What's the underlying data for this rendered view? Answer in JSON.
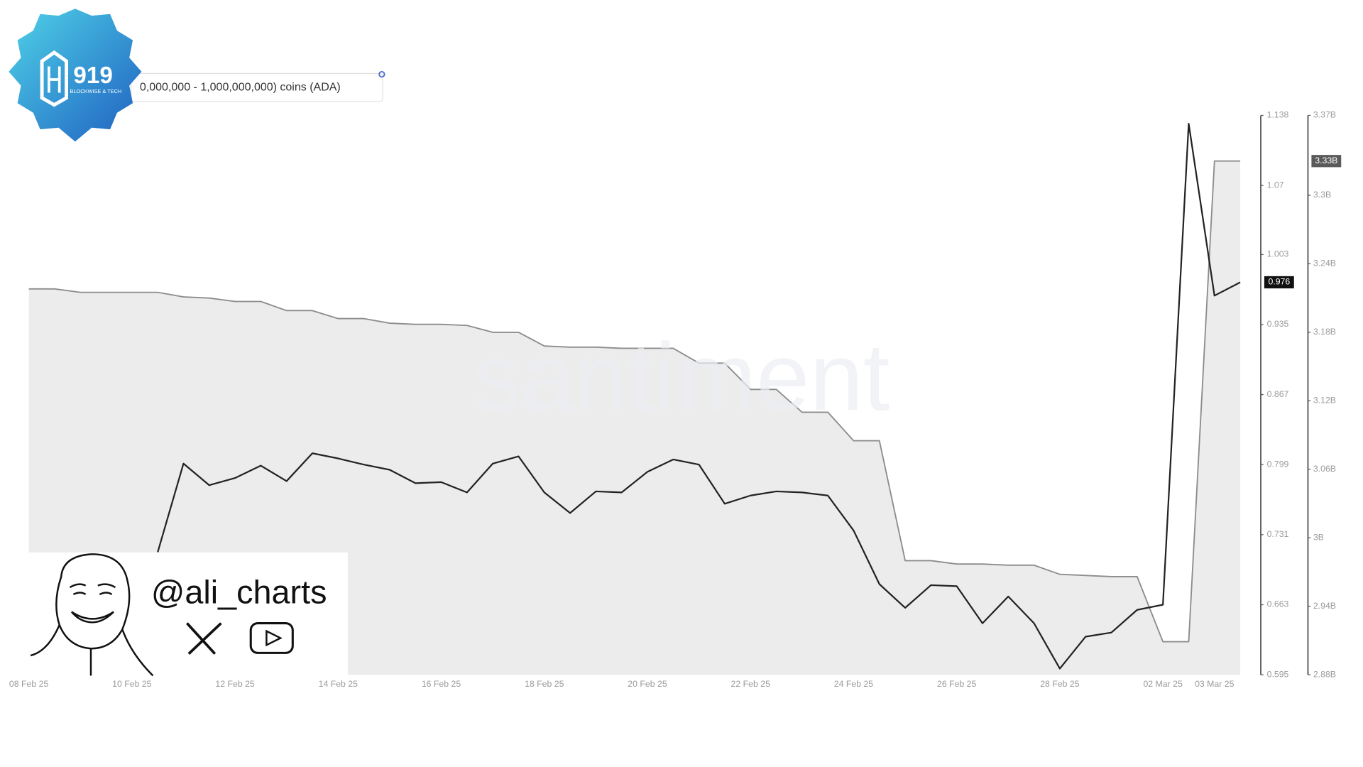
{
  "chart_data": {
    "type": "line",
    "watermark": "santiment",
    "logo": {
      "number": "919",
      "tagline": "BLOCKWISE & TECH"
    },
    "handle": "@ali_charts",
    "categories": [
      "08 Feb 25",
      null,
      null,
      null,
      "10 Feb 25",
      null,
      null,
      null,
      "12 Feb 25",
      null,
      null,
      null,
      "14 Feb 25",
      null,
      null,
      null,
      "16 Feb 25",
      null,
      null,
      null,
      "18 Feb 25",
      null,
      null,
      null,
      "20 Feb 25",
      null,
      null,
      null,
      "22 Feb 25",
      null,
      null,
      null,
      "24 Feb 25",
      null,
      null,
      null,
      "26 Feb 25",
      null,
      null,
      null,
      "28 Feb 25",
      null,
      null,
      null,
      "02 Mar 25",
      null,
      "03 Mar 25",
      null
    ],
    "series": [
      {
        "name": "0,000,000 - 1,000,000,000) coins (ADA)",
        "axis": "y2",
        "style": "area",
        "color": "#8c8c8c",
        "fill": "#ececec",
        "values": [
          3218000000,
          3218000000,
          3215000000,
          3215000000,
          3215000000,
          3215000000,
          3211000000,
          3210000000,
          3207000000,
          3207000000,
          3199000000,
          3199000000,
          3192000000,
          3192000000,
          3188000000,
          3187000000,
          3187000000,
          3186000000,
          3180000000,
          3180000000,
          3168000000,
          3167000000,
          3167000000,
          3166000000,
          3166000000,
          3166000000,
          3153000000,
          3153000000,
          3130000000,
          3130000000,
          3110000000,
          3110000000,
          3085000000,
          3085000000,
          2980000000,
          2980000000,
          2977000000,
          2977000000,
          2976000000,
          2976000000,
          2968000000,
          2967000000,
          2966000000,
          2966000000,
          2909000000,
          2909000000,
          3330000000,
          3330000000
        ],
        "value_labels": [
          null,
          null,
          null,
          null,
          null,
          null,
          null,
          null,
          null,
          null,
          null,
          null,
          null,
          null,
          null,
          null,
          null,
          null,
          null,
          null,
          null,
          null,
          null,
          null,
          null,
          null,
          null,
          null,
          null,
          null,
          null,
          null,
          null,
          null,
          null,
          null,
          null,
          null,
          null,
          null,
          null,
          null,
          null,
          null,
          null,
          null,
          null,
          "3.33B"
        ]
      },
      {
        "style": "line",
        "color": "#222222",
        "values": [
          null,
          null,
          null,
          null,
          null,
          0.714,
          0.8,
          0.779,
          0.786,
          0.798,
          0.783,
          0.81,
          0.805,
          0.799,
          0.794,
          0.781,
          0.782,
          0.772,
          0.8,
          0.807,
          0.772,
          0.752,
          0.773,
          0.772,
          0.792,
          0.804,
          0.799,
          0.761,
          0.769,
          0.773,
          0.772,
          0.769,
          0.735,
          0.683,
          0.66,
          0.682,
          0.681,
          0.645,
          0.671,
          0.645,
          0.601,
          0.632,
          0.636,
          0.658,
          0.663,
          1.13,
          0.963,
          0.976
        ]
      }
    ],
    "ylim": [
      0.595,
      1.138
    ],
    "yticks": [
      0.595,
      0.663,
      0.731,
      0.799,
      0.867,
      0.935,
      1.003,
      1.07,
      1.138
    ],
    "y2lim": [
      2880000000,
      3370000000
    ],
    "y2ticks": [
      {
        "value": 2880000000,
        "label": "2.88B"
      },
      {
        "value": 2940000000,
        "label": "2.94B"
      },
      {
        "value": 3000000000,
        "label": "3B"
      },
      {
        "value": 3060000000,
        "label": "3.06B"
      },
      {
        "value": 3120000000,
        "label": "3.12B"
      },
      {
        "value": 3180000000,
        "label": "3.18B"
      },
      {
        "value": 3240000000,
        "label": "3.24B"
      },
      {
        "value": 3300000000,
        "label": "3.3B"
      },
      {
        "value": 3370000000,
        "label": "3.37B"
      }
    ],
    "grid": false
  }
}
